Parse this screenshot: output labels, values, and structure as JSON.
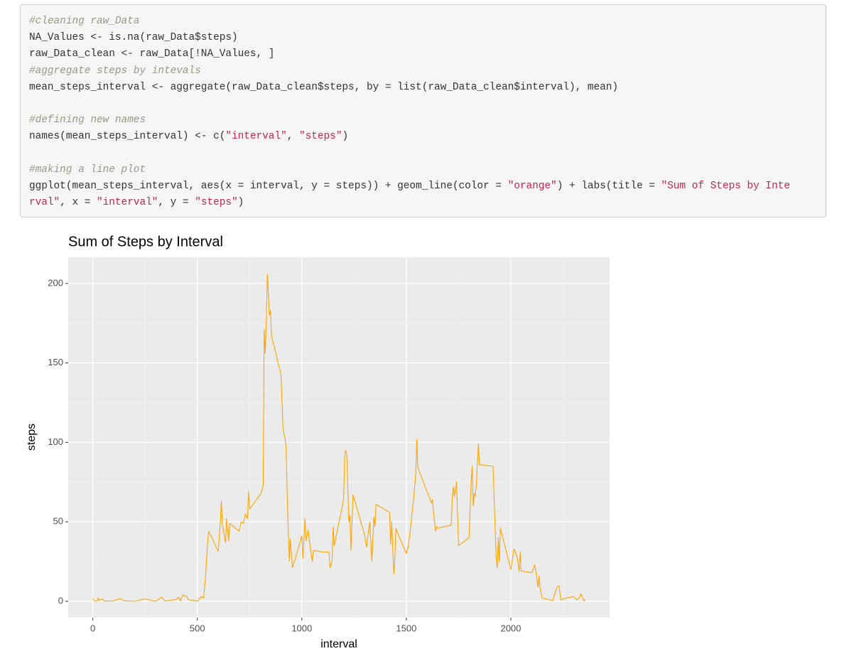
{
  "code": {
    "lines": [
      [
        {
          "text": "#cleaning raw_Data",
          "style": "comment"
        }
      ],
      [
        {
          "text": "NA_Values <- is.na(raw_Data$steps)",
          "style": "plain"
        }
      ],
      [
        {
          "text": "raw_Data_clean <- raw_Data[!NA_Values, ]",
          "style": "plain"
        }
      ],
      [
        {
          "text": "#aggregate steps by intevals",
          "style": "comment"
        }
      ],
      [
        {
          "text": "mean_steps_interval <- aggregate(raw_Data_clean$steps, by = list(raw_Data_clean$interval), mean)",
          "style": "plain"
        }
      ],
      [],
      [
        {
          "text": "#defining new names",
          "style": "comment"
        }
      ],
      [
        {
          "text": "names(mean_steps_interval) <- c(",
          "style": "plain"
        },
        {
          "text": "\"interval\"",
          "style": "string"
        },
        {
          "text": ", ",
          "style": "plain"
        },
        {
          "text": "\"steps\"",
          "style": "string"
        },
        {
          "text": ")",
          "style": "plain"
        }
      ],
      [],
      [
        {
          "text": "#making a line plot",
          "style": "comment"
        }
      ],
      [
        {
          "text": "ggplot(mean_steps_interval, aes(x = interval, y = steps)) + geom_line(color = ",
          "style": "plain"
        },
        {
          "text": "\"orange\"",
          "style": "string"
        },
        {
          "text": ") + labs(title = ",
          "style": "plain"
        },
        {
          "text": "\"Sum of Steps by Inte",
          "style": "string"
        }
      ],
      [
        {
          "text": "rval\"",
          "style": "string"
        },
        {
          "text": ", x = ",
          "style": "plain"
        },
        {
          "text": "\"interval\"",
          "style": "string"
        },
        {
          "text": ", y = ",
          "style": "plain"
        },
        {
          "text": "\"steps\"",
          "style": "string"
        },
        {
          "text": ")",
          "style": "plain"
        }
      ]
    ]
  },
  "chart_data": {
    "type": "line",
    "title": "Sum of Steps by Interval",
    "x_label": "interval",
    "y_label": "steps",
    "color": "orange",
    "x": [
      0,
      10,
      20,
      25,
      30,
      45,
      55,
      100,
      130,
      150,
      200,
      250,
      300,
      330,
      345,
      400,
      410,
      420,
      430,
      440,
      450,
      455,
      500,
      520,
      530,
      540,
      550,
      555,
      600,
      610,
      615,
      620,
      635,
      640,
      650,
      655,
      700,
      710,
      720,
      730,
      740,
      745,
      750,
      805,
      815,
      820,
      825,
      830,
      835,
      845,
      850,
      855,
      900,
      910,
      920,
      925,
      930,
      940,
      945,
      955,
      1000,
      1005,
      1015,
      1020,
      1030,
      1040,
      1050,
      1055,
      1100,
      1130,
      1135,
      1145,
      1150,
      1155,
      1200,
      1205,
      1210,
      1215,
      1225,
      1230,
      1235,
      1245,
      1300,
      1310,
      1315,
      1325,
      1335,
      1340,
      1345,
      1350,
      1355,
      1420,
      1425,
      1430,
      1440,
      1445,
      1450,
      1455,
      1500,
      1510,
      1520,
      1535,
      1545,
      1550,
      1555,
      1620,
      1625,
      1630,
      1640,
      1645,
      1650,
      1715,
      1720,
      1725,
      1730,
      1740,
      1745,
      1750,
      1800,
      1810,
      1815,
      1820,
      1825,
      1830,
      1835,
      1845,
      1850,
      1915,
      1930,
      1935,
      1940,
      1945,
      1950,
      2000,
      2015,
      2030,
      2040,
      2045,
      2050,
      2100,
      2115,
      2130,
      2135,
      2140,
      2150,
      2200,
      2220,
      2230,
      2240,
      2250,
      2300,
      2315,
      2330,
      2335,
      2350,
      2355
    ],
    "values": [
      1.7,
      0.1,
      0.1,
      2.1,
      0.5,
      1.5,
      0.1,
      0.3,
      1.8,
      0.3,
      0,
      1.5,
      0,
      2.6,
      0.1,
      1.2,
      2.6,
      0.3,
      4,
      3.5,
      3,
      1.1,
      0,
      3,
      2,
      17,
      39,
      44,
      31.5,
      49,
      63,
      48,
      37,
      52,
      38,
      49,
      44,
      50,
      49,
      55,
      52,
      69,
      58,
      68,
      73,
      171,
      156,
      177,
      206,
      180,
      183,
      167,
      143,
      109,
      102,
      96,
      66,
      25,
      39,
      21,
      41,
      27,
      52,
      38,
      45,
      34,
      25,
      32,
      31,
      31,
      21,
      25,
      47,
      35,
      64,
      92,
      95,
      92,
      50,
      54,
      32,
      67,
      42,
      34,
      40,
      50,
      25,
      40,
      53,
      47,
      61,
      56,
      36,
      50,
      17,
      27,
      46,
      44,
      30,
      35,
      46,
      65,
      80,
      102,
      84,
      62,
      64,
      56,
      44,
      47,
      46,
      48,
      65,
      72,
      66,
      75,
      56,
      35,
      40,
      75,
      85,
      60,
      68,
      66,
      74,
      99,
      86,
      85,
      28,
      21,
      40,
      25,
      46,
      20,
      33,
      28,
      19,
      31,
      19,
      18,
      23,
      9,
      16,
      8,
      2,
      0.5,
      8.7,
      9.8,
      0.6,
      1.6,
      3,
      0.8,
      2.6,
      4.7,
      0.2,
      1.1
    ],
    "xlim": [
      -117.75,
      2472.75
    ],
    "ylim": [
      -10.3,
      216.5
    ],
    "xticks": [
      0,
      500,
      1000,
      1500,
      2000
    ],
    "yticks": [
      0,
      50,
      100,
      150,
      200
    ],
    "x_minor_ticks": [
      250,
      750,
      1250,
      1750,
      2250
    ],
    "y_minor_ticks": [
      25,
      75,
      125,
      175
    ],
    "grid": true
  }
}
